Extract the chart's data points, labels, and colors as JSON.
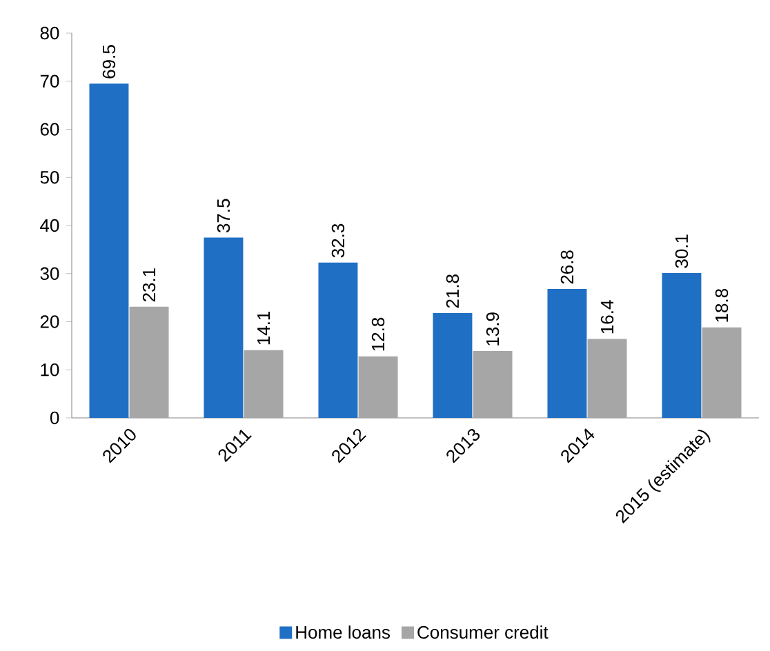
{
  "chart_data": {
    "type": "bar",
    "categories": [
      "2010",
      "2011",
      "2012",
      "2013",
      "2014",
      "2015 (estimate)"
    ],
    "series": [
      {
        "name": "Home loans",
        "color": "#1f6fc5",
        "values": [
          69.5,
          37.5,
          32.3,
          21.8,
          26.8,
          30.1
        ]
      },
      {
        "name": "Consumer credit",
        "color": "#a6a6a6",
        "values": [
          23.1,
          14.1,
          12.8,
          13.9,
          16.4,
          18.8
        ]
      }
    ],
    "ylim": [
      0,
      80
    ],
    "yticks": [
      0,
      10,
      20,
      30,
      40,
      50,
      60,
      70,
      80
    ],
    "data_labels": true,
    "legend": "bottom",
    "grid": false
  }
}
